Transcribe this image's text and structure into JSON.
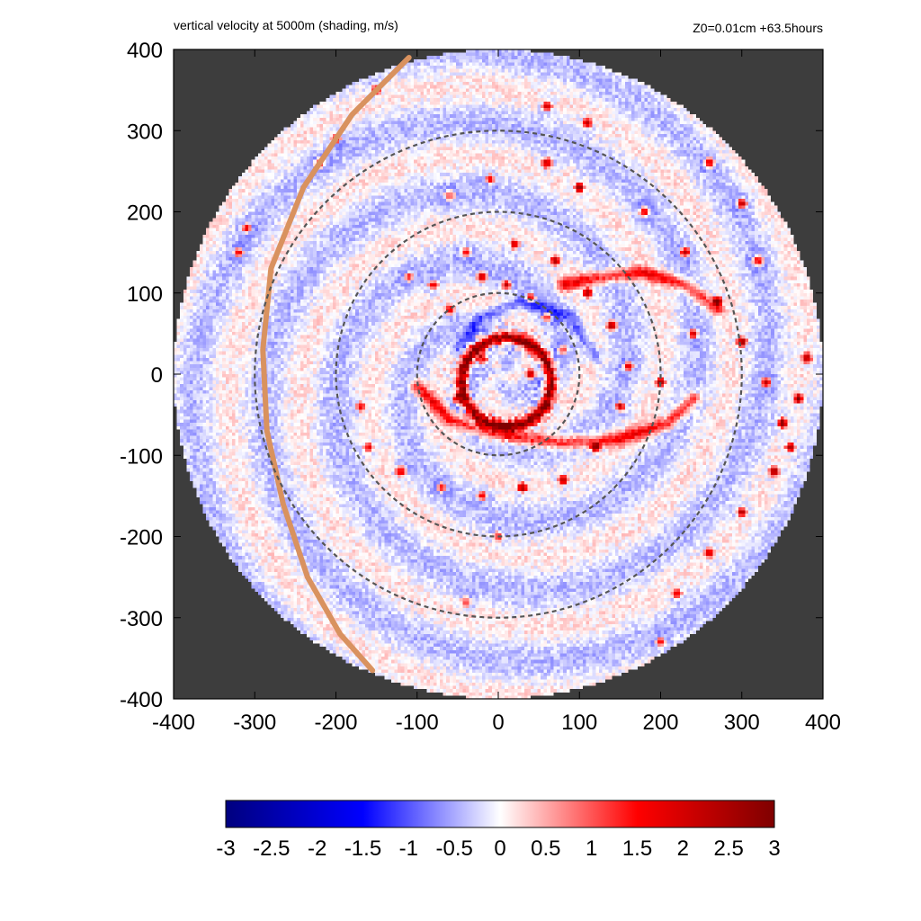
{
  "chart_data": {
    "type": "heatmap",
    "title": "vertical velocity at 5000m (shading, m/s)",
    "subtitle": "Z0=0.01cm  +63.5hours",
    "xlabel": "",
    "ylabel": "",
    "xlim": [
      -400,
      400
    ],
    "ylim": [
      -400,
      400
    ],
    "x_ticks": [
      "-400",
      "-300",
      "-200",
      "-100",
      "0",
      "100",
      "200",
      "300",
      "400"
    ],
    "y_ticks": [
      "400",
      "300",
      "200",
      "100",
      "0",
      "-100",
      "-200",
      "-300",
      "-400"
    ],
    "domain_radius": 400,
    "reference_circles_radii": [
      100,
      200,
      300
    ],
    "colorbar": {
      "range": [
        -3,
        3
      ],
      "ticks": [
        "-3",
        "-2.5",
        "-2",
        "-1.5",
        "-1",
        "-0.5",
        "0",
        "0.5",
        "1",
        "1.5",
        "2",
        "2.5",
        "3"
      ],
      "colors": [
        "#00007f",
        "#0000ff",
        "#ffffff",
        "#ff0000",
        "#7f0000"
      ]
    },
    "background_color": "#3d3d3d",
    "coast_color": "#d9925f",
    "coastline_points": [
      [
        -110,
        390
      ],
      [
        -180,
        320
      ],
      [
        -240,
        230
      ],
      [
        -280,
        130
      ],
      [
        -290,
        30
      ],
      [
        -285,
        -70
      ],
      [
        -265,
        -160
      ],
      [
        -235,
        -250
      ],
      [
        -195,
        -320
      ],
      [
        -155,
        -365
      ]
    ],
    "features": [
      {
        "type": "eyewall_ring",
        "cx": 10,
        "cy": -10,
        "r": 55,
        "w": 3.0
      },
      {
        "type": "spiral_band",
        "w": 1.5,
        "points": [
          [
            -100,
            -15
          ],
          [
            -60,
            -55
          ],
          [
            0,
            -75
          ],
          [
            80,
            -85
          ],
          [
            150,
            -80
          ],
          [
            210,
            -60
          ],
          [
            240,
            -30
          ]
        ]
      },
      {
        "type": "spiral_band",
        "w": 1.5,
        "points": [
          [
            80,
            110
          ],
          [
            130,
            120
          ],
          [
            180,
            125
          ],
          [
            230,
            110
          ],
          [
            270,
            80
          ]
        ]
      },
      {
        "type": "spiral_band",
        "w": -0.8,
        "points": [
          [
            -50,
            30
          ],
          [
            -20,
            70
          ],
          [
            30,
            90
          ],
          [
            90,
            70
          ],
          [
            120,
            20
          ]
        ]
      }
    ],
    "cells": [
      [
        -20,
        120,
        2.6
      ],
      [
        10,
        110,
        2.2
      ],
      [
        40,
        95,
        2.5
      ],
      [
        60,
        70,
        2.0
      ],
      [
        -60,
        80,
        1.8
      ],
      [
        -80,
        110,
        2.0
      ],
      [
        -110,
        120,
        1.7
      ],
      [
        -40,
        150,
        2.1
      ],
      [
        20,
        160,
        1.9
      ],
      [
        70,
        140,
        2.3
      ],
      [
        110,
        100,
        2.4
      ],
      [
        140,
        60,
        2.8
      ],
      [
        160,
        10,
        2.5
      ],
      [
        150,
        -40,
        2.7
      ],
      [
        120,
        -90,
        2.9
      ],
      [
        80,
        -130,
        2.4
      ],
      [
        30,
        -140,
        2.3
      ],
      [
        -20,
        -150,
        2.0
      ],
      [
        -70,
        -140,
        1.9
      ],
      [
        -120,
        -120,
        1.8
      ],
      [
        -160,
        -90,
        1.6
      ],
      [
        -170,
        -40,
        1.5
      ],
      [
        100,
        230,
        2.6
      ],
      [
        60,
        260,
        2.2
      ],
      [
        -10,
        240,
        2.0
      ],
      [
        -60,
        220,
        1.8
      ],
      [
        180,
        200,
        2.4
      ],
      [
        230,
        150,
        2.8
      ],
      [
        270,
        90,
        2.9
      ],
      [
        300,
        40,
        2.7
      ],
      [
        330,
        -10,
        2.8
      ],
      [
        350,
        -60,
        2.9
      ],
      [
        340,
        -120,
        2.6
      ],
      [
        300,
        -170,
        2.2
      ],
      [
        260,
        -220,
        2.0
      ],
      [
        220,
        -270,
        1.8
      ],
      [
        200,
        -330,
        2.0
      ],
      [
        260,
        260,
        2.4
      ],
      [
        300,
        210,
        2.5
      ],
      [
        320,
        140,
        2.3
      ],
      [
        240,
        50,
        2.6
      ],
      [
        200,
        -10,
        2.4
      ],
      [
        110,
        310,
        2.3
      ],
      [
        60,
        330,
        2.0
      ],
      [
        -200,
        290,
        2.0
      ],
      [
        -310,
        180,
        2.2
      ],
      [
        -320,
        150,
        2.0
      ],
      [
        -150,
        350,
        1.8
      ],
      [
        -220,
        260,
        1.6
      ],
      [
        0,
        -200,
        1.5
      ],
      [
        -40,
        -280,
        1.2
      ],
      [
        40,
        0,
        2.3
      ],
      [
        -20,
        20,
        1.9
      ],
      [
        60,
        -40,
        2.1
      ],
      [
        -50,
        -30,
        2.4
      ],
      [
        80,
        30,
        1.7
      ],
      [
        380,
        20,
        2.5
      ],
      [
        370,
        -30,
        2.8
      ],
      [
        360,
        -90,
        2.6
      ]
    ]
  }
}
